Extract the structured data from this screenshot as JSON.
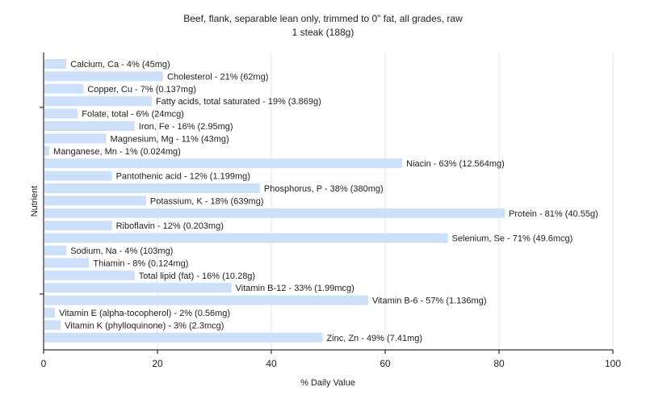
{
  "chart_data": {
    "type": "bar",
    "orientation": "horizontal",
    "title": "Beef, flank, separable lean only, trimmed to 0\" fat, all grades, raw",
    "subtitle": "1 steak (188g)",
    "xlabel": "% Daily Value",
    "ylabel": "Nutrient",
    "xlim": [
      0,
      100
    ],
    "xticks": [
      0,
      20,
      40,
      60,
      80,
      100
    ],
    "grid": true,
    "bar_color": "#cce0fa",
    "categories": [
      "Calcium, Ca",
      "Cholesterol",
      "Copper, Cu",
      "Fatty acids, total saturated",
      "Folate, total",
      "Iron, Fe",
      "Magnesium, Mg",
      "Manganese, Mn",
      "Niacin",
      "Pantothenic acid",
      "Phosphorus, P",
      "Potassium, K",
      "Protein",
      "Riboflavin",
      "Selenium, Se",
      "Sodium, Na",
      "Thiamin",
      "Total lipid (fat)",
      "Vitamin B-12",
      "Vitamin B-6",
      "Vitamin E (alpha-tocopherol)",
      "Vitamin K (phylloquinone)",
      "Zinc, Zn"
    ],
    "values": [
      4,
      21,
      7,
      19,
      6,
      16,
      11,
      1,
      63,
      12,
      38,
      18,
      81,
      12,
      71,
      4,
      8,
      16,
      33,
      57,
      2,
      3,
      49
    ],
    "labels": [
      "Calcium, Ca - 4% (45mg)",
      "Cholesterol - 21% (62mg)",
      "Copper, Cu - 7% (0.137mg)",
      "Fatty acids, total saturated - 19% (3.869g)",
      "Folate, total - 6% (24mcg)",
      "Iron, Fe - 16% (2.95mg)",
      "Magnesium, Mg - 11% (43mg)",
      "Manganese, Mn - 1% (0.024mg)",
      "Niacin - 63% (12.564mg)",
      "Pantothenic acid - 12% (1.199mg)",
      "Phosphorus, P - 38% (380mg)",
      "Potassium, K - 18% (639mg)",
      "Protein - 81% (40.55g)",
      "Riboflavin - 12% (0.203mg)",
      "Selenium, Se - 71% (49.6mcg)",
      "Sodium, Na - 4% (103mg)",
      "Thiamin - 8% (0.124mg)",
      "Total lipid (fat) - 16% (10.28g)",
      "Vitamin B-12 - 33% (1.99mcg)",
      "Vitamin B-6 - 57% (1.136mg)",
      "Vitamin E (alpha-tocopherol) - 2% (0.56mg)",
      "Vitamin K (phylloquinone) - 3% (2.3mcg)",
      "Zinc, Zn - 49% (7.41mg)"
    ]
  }
}
